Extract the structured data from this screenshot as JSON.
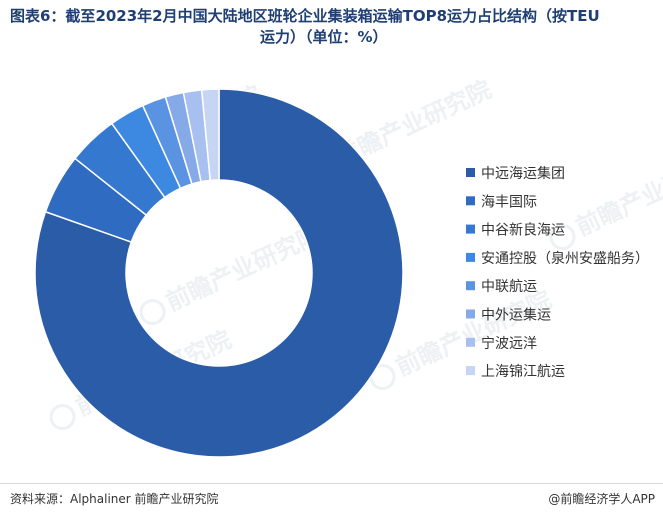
{
  "title_line1": "图表6：截至2023年2月中国大陆地区班轮企业集装箱运输TOP8运力占比结构（按TEU",
  "title_line2": "运力）（单位：%）",
  "watermark_text": "前瞻产业研究院",
  "source": "资料来源：Alphaliner 前瞻产业研究院",
  "brand": "@前瞻经济学人APP",
  "chart_data": {
    "type": "pie",
    "donut": true,
    "title": "图表6：截至2023年2月中国大陆地区班轮企业集装箱运输TOP8运力占比结构（按TEU运力）（单位：%）",
    "legend_position": "right",
    "data_labels": false,
    "categories": [
      "中远海运集团",
      "海丰国际",
      "中谷新良海运",
      "安通控股（泉州安盛船务）",
      "中联航运",
      "中外运集运",
      "宁波远洋",
      "上海锦江航运"
    ],
    "values": [
      80.4,
      5.3,
      4.4,
      3.1,
      2.1,
      1.6,
      1.6,
      1.5
    ],
    "colors": [
      "#2a5ca8",
      "#2f6bc0",
      "#3478cf",
      "#3d88e0",
      "#5a93e2",
      "#86a9e8",
      "#a8c0f0",
      "#c7d5f5"
    ]
  }
}
